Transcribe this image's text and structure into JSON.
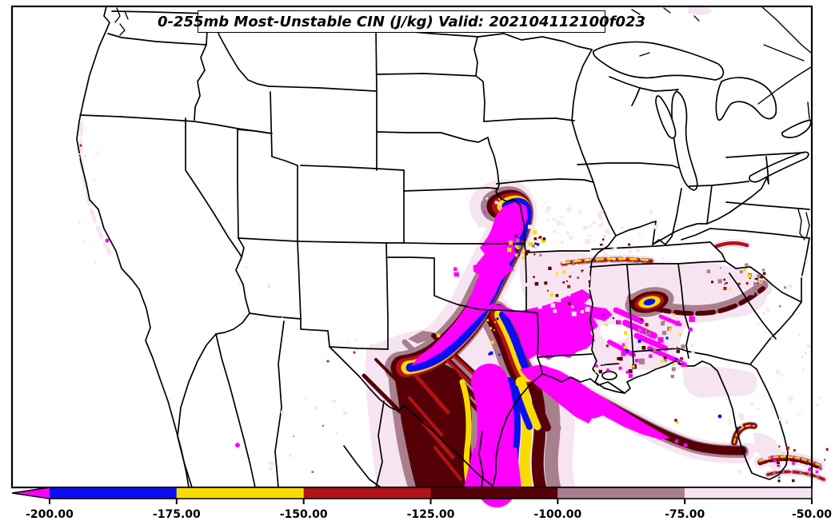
{
  "title": {
    "text": "0-255mb Most-Unstable CIN (J/kg) Valid: 202104112100f023"
  },
  "colorbar": {
    "ticks": [
      "-200.00",
      "-175.00",
      "-150.00",
      "-125.00",
      "-100.00",
      "-75.00",
      "-50.00"
    ],
    "tick_values": [
      -200,
      -175,
      -150,
      -125,
      -100,
      -75,
      -50
    ],
    "units": "J/kg",
    "segments": [
      {
        "range": "< -200",
        "color": "#FF00FF"
      },
      {
        "range": "-200 to -175",
        "color": "#0D0DF2"
      },
      {
        "range": "-175 to -150",
        "color": "#F8DC00"
      },
      {
        "range": "-150 to -125",
        "color": "#B31217"
      },
      {
        "range": "-125 to -100",
        "color": "#550007"
      },
      {
        "range": "-100 to -75",
        "color": "#A97F8E"
      },
      {
        "range": "-75 to -50",
        "color": "#F7E4F1"
      }
    ]
  },
  "map": {
    "background": "#FFFFFF",
    "border_color": "#000000"
  },
  "colors": {
    "magenta": "#FF00FF",
    "blue": "#0D0DF2",
    "yellow": "#F8DC00",
    "red": "#B31217",
    "maroon": "#550007",
    "mauve": "#A97F8E",
    "pink": "#F7E4F1",
    "line": "#000000",
    "white": "#FFFFFF"
  }
}
